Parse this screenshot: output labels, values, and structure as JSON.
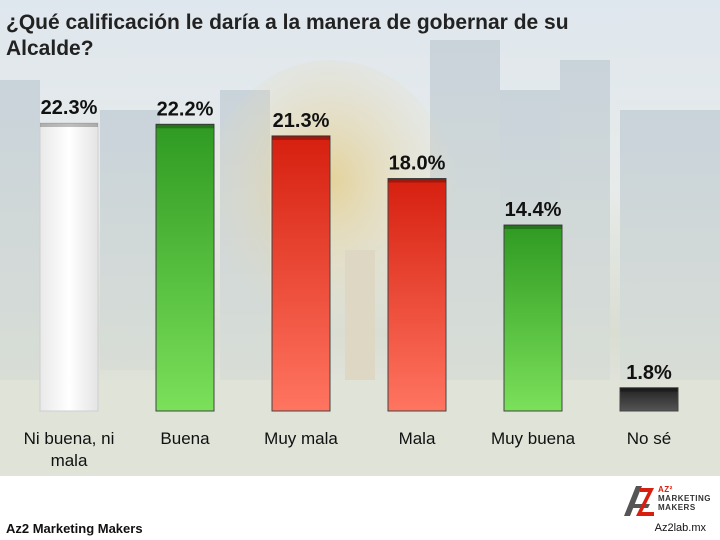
{
  "title": "¿Qué calificación le daría a la manera de gobernar de su Alcalde?",
  "chart_data": {
    "type": "bar",
    "categories": [
      "Ni buena, ni mala",
      "Buena",
      "Muy mala",
      "Mala",
      "Muy buena",
      "No sé"
    ],
    "category_lines": [
      [
        "Ni buena, ni",
        "mala"
      ],
      [
        "Buena"
      ],
      [
        "Muy mala"
      ],
      [
        "Mala"
      ],
      [
        "Muy buena"
      ],
      [
        "No sé"
      ]
    ],
    "values": [
      22.3,
      22.2,
      21.3,
      18.0,
      14.4,
      1.8
    ],
    "value_labels": [
      "22.3%",
      "22.2%",
      "21.3%",
      "18.0%",
      "14.4%",
      "1.8%"
    ],
    "bar_colors": [
      "#ffffff",
      "#3fae2a",
      "#e8321e",
      "#e8321e",
      "#3fae2a",
      "#2b2b2b"
    ],
    "unit": "%",
    "ylim": [
      0,
      22.3
    ],
    "grid": false,
    "legend": "none"
  },
  "footer": {
    "left": "Az2 Marketing Makers",
    "right": "Az2lab.mx",
    "logo_text": [
      "AZ²",
      "MARKETING",
      "MAKERS"
    ]
  }
}
